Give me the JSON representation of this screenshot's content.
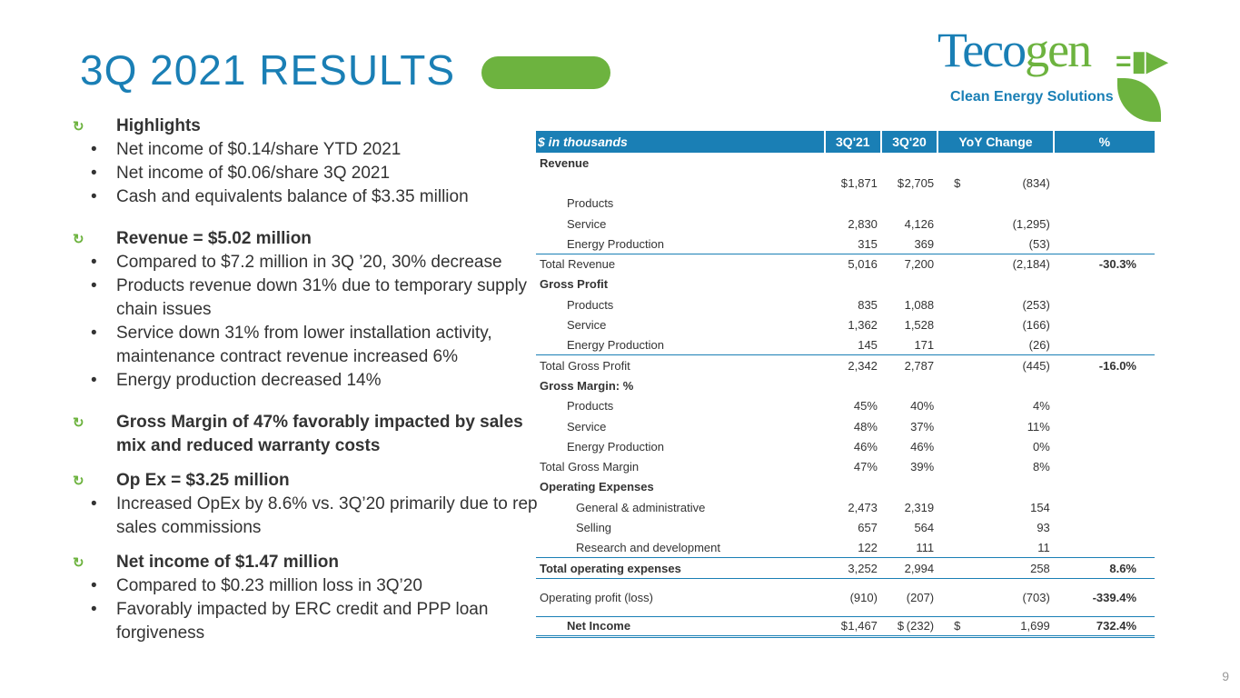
{
  "title": "3Q 2021 RESULTS",
  "logo": {
    "brand_a": "Teco",
    "brand_b": "gen",
    "tagline": "Clean Energy Solutions"
  },
  "colors": {
    "blue": "#1a7fb5",
    "green": "#6db33f"
  },
  "highlights": [
    {
      "heading": "Highlights",
      "bullets": [
        "Net income of $0.14/share YTD 2021",
        "Net income of $0.06/share 3Q 2021",
        "Cash and equivalents balance of $3.35 million"
      ]
    },
    {
      "heading": "Revenue = $5.02 million",
      "bullets": [
        "Compared to $7.2 million in 3Q ’20, 30% decrease",
        "Products revenue down 31% due to temporary supply chain issues",
        "Service down 31% from lower installation activity, maintenance contract revenue increased 6%",
        "Energy production decreased 14%"
      ]
    },
    {
      "heading": "Gross Margin of 47% favorably impacted by sales mix and reduced warranty costs",
      "bullets": []
    },
    {
      "heading": "Op Ex = $3.25 million",
      "bullets": [
        "Increased OpEx by 8.6% vs. 3Q’20 primarily due to rep sales commissions"
      ]
    },
    {
      "heading": "Net income of $1.47 million",
      "bullets": [
        "Compared to $0.23 million loss in 3Q’20",
        "Favorably impacted by ERC credit and PPP loan forgiveness"
      ]
    }
  ],
  "table": {
    "headers": [
      "$ in thousands",
      "3Q'21",
      "3Q'20",
      "YoY Change",
      "%"
    ],
    "rows": [
      {
        "label": "Revenue",
        "cls": "b",
        "vals": [
          "",
          "",
          "",
          ""
        ]
      },
      {
        "label": "",
        "vals": [
          "1,871",
          "2,705",
          "(834)",
          ""
        ],
        "dollar": true
      },
      {
        "label": "Products",
        "indent": 1,
        "vals": [
          "",
          "",
          "",
          ""
        ]
      },
      {
        "label": "Service",
        "indent": 1,
        "vals": [
          "2,830",
          "4,126",
          "(1,295)",
          ""
        ]
      },
      {
        "label": "Energy Production",
        "indent": 1,
        "vals": [
          "315",
          "369",
          "(53)",
          ""
        ]
      },
      {
        "label": "Total Revenue",
        "cls": "line",
        "vals": [
          "5,016",
          "7,200",
          "(2,184)",
          "-30.3%"
        ]
      },
      {
        "label": "Gross Profit",
        "cls": "b",
        "vals": [
          "",
          "",
          "",
          ""
        ]
      },
      {
        "label": "Products",
        "indent": 1,
        "vals": [
          "835",
          "1,088",
          "(253)",
          ""
        ]
      },
      {
        "label": "Service",
        "indent": 1,
        "vals": [
          "1,362",
          "1,528",
          "(166)",
          ""
        ]
      },
      {
        "label": "Energy Production",
        "indent": 1,
        "vals": [
          "145",
          "171",
          "(26)",
          ""
        ]
      },
      {
        "label": "Total Gross Profit",
        "cls": "line",
        "vals": [
          "2,342",
          "2,787",
          "(445)",
          "-16.0%"
        ]
      },
      {
        "label": "Gross Margin: %",
        "cls": "b",
        "vals": [
          "",
          "",
          "",
          ""
        ]
      },
      {
        "label": "Products",
        "indent": 1,
        "vals": [
          "45%",
          "40%",
          "4%",
          ""
        ]
      },
      {
        "label": "Service",
        "indent": 1,
        "vals": [
          "48%",
          "37%",
          "11%",
          ""
        ]
      },
      {
        "label": "Energy Production",
        "indent": 1,
        "vals": [
          "46%",
          "46%",
          "0%",
          ""
        ]
      },
      {
        "label": "Total Gross Margin",
        "vals": [
          "47%",
          "39%",
          "8%",
          ""
        ]
      },
      {
        "label": "Operating Expenses",
        "cls": "b",
        "vals": [
          "",
          "",
          "",
          ""
        ]
      },
      {
        "label": "General & administrative",
        "indent": 2,
        "vals": [
          "2,473",
          "2,319",
          "154",
          ""
        ]
      },
      {
        "label": "Selling",
        "indent": 2,
        "vals": [
          "657",
          "564",
          "93",
          ""
        ]
      },
      {
        "label": "Research and development",
        "indent": 2,
        "vals": [
          "122",
          "111",
          "11",
          ""
        ]
      },
      {
        "label": "Total operating expenses",
        "cls": "line bl",
        "vals": [
          "3,252",
          "2,994",
          "258",
          "8.6%"
        ]
      },
      {
        "label": "Operating profit (loss)",
        "cls": "line tall",
        "vals": [
          "(910)",
          "(207)",
          "(703)",
          "-339.4%"
        ]
      },
      {
        "label": "Net Income",
        "cls": "line dbl bl",
        "indent": 1,
        "vals": [
          "1,467",
          "(232)",
          "1,699",
          "732.4%"
        ],
        "dollar": true
      }
    ]
  },
  "page_number": "9"
}
